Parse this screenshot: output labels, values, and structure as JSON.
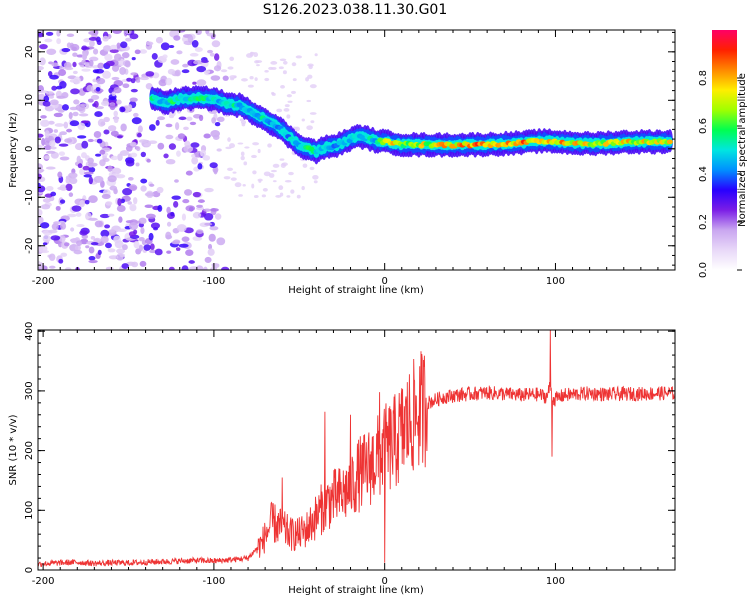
{
  "title": "S126.2023.038.11.30.G01",
  "chart_data": [
    {
      "type": "heatmap",
      "xlabel": "Height of straight line (km)",
      "ylabel": "Frequency (Hz)",
      "xlim": [
        -203,
        170
      ],
      "ylim": [
        -25,
        24.5
      ],
      "xticks": [
        -200,
        -100,
        0,
        100
      ],
      "yticks": [
        -20,
        -10,
        0,
        10,
        20
      ],
      "colorbar": {
        "label": "Normalized spectral amplitude",
        "range": [
          0,
          1
        ],
        "ticks": [
          0.0,
          0.2,
          0.4,
          0.6,
          0.8
        ],
        "tick_labels": [
          "0.0",
          "0.2",
          "0.4",
          "0.6",
          "0.8"
        ],
        "colormap": [
          "#ffffff",
          "#e8d8f8",
          "#c9a6f0",
          "#7b1ee6",
          "#2800ff",
          "#0090ff",
          "#00e6e0",
          "#00ff50",
          "#a0ff00",
          "#ffee00",
          "#ff8800",
          "#ff2000",
          "#ff0066"
        ]
      },
      "ridge": {
        "x": [
          -136,
          -128,
          -120,
          -110,
          -100,
          -92,
          -85,
          -78,
          -72,
          -65,
          -60,
          -55,
          -50,
          -45,
          -40,
          -35,
          -30,
          -25,
          -20,
          -15,
          -10,
          -5,
          0,
          10,
          20,
          40,
          60,
          80,
          90,
          100,
          120,
          140,
          168
        ],
        "y": [
          10.5,
          9.5,
          10.3,
          10.5,
          10.3,
          9.2,
          9.0,
          7.6,
          6.5,
          5.0,
          3.8,
          2.2,
          0.8,
          0.0,
          -0.6,
          0.3,
          0.5,
          1.2,
          2.0,
          2.6,
          2.2,
          1.6,
          1.5,
          0.9,
          0.8,
          0.8,
          0.9,
          1.2,
          1.6,
          1.5,
          1.0,
          1.4,
          1.5
        ],
        "amplitude": [
          0.55,
          0.55,
          0.6,
          0.6,
          0.55,
          0.55,
          0.55,
          0.55,
          0.55,
          0.5,
          0.5,
          0.5,
          0.55,
          0.6,
          0.6,
          0.55,
          0.5,
          0.5,
          0.5,
          0.55,
          0.55,
          0.55,
          0.9,
          0.7,
          0.75,
          0.85,
          0.9,
          0.9,
          0.9,
          0.85,
          0.8,
          0.8,
          0.8
        ]
      }
    },
    {
      "type": "line",
      "xlabel": "Height of straight line (km)",
      "ylabel": "SNR (10 * v/v)",
      "xlim": [
        -203,
        170
      ],
      "ylim": [
        0,
        402
      ],
      "xticks": [
        -200,
        -100,
        0,
        100
      ],
      "yticks": [
        0,
        100,
        200,
        300,
        400
      ],
      "color": "#ee3333",
      "series": [
        {
          "x": [
            -203,
            -190,
            -180,
            -170,
            -160,
            -150,
            -140,
            -130,
            -120,
            -110,
            -100,
            -90,
            -80,
            -72,
            -66,
            -60,
            -55,
            -50,
            -45,
            -40,
            -35,
            -30,
            -25,
            -20,
            -15,
            -10,
            -5,
            0,
            5,
            10,
            15,
            20,
            25,
            30,
            35,
            40,
            50,
            60,
            70,
            80,
            90,
            95,
            97,
            99,
            105,
            110,
            120,
            130,
            140,
            150,
            160,
            170
          ],
          "y": [
            10,
            12,
            13,
            11,
            12,
            12,
            13,
            14,
            15,
            16,
            15,
            17,
            20,
            45,
            80,
            70,
            60,
            60,
            70,
            90,
            110,
            120,
            125,
            140,
            160,
            170,
            185,
            200,
            210,
            230,
            250,
            265,
            280,
            285,
            290,
            292,
            295,
            297,
            295,
            293,
            294,
            290,
            310,
            285,
            293,
            294,
            296,
            294,
            295,
            295,
            296,
            296
          ]
        }
      ],
      "spikes": [
        {
          "x": -60,
          "y": 155
        },
        {
          "x": -35,
          "y": 265
        },
        {
          "x": -20,
          "y": 260
        },
        {
          "x": -3,
          "y": 298
        },
        {
          "x": 0,
          "y": 12
        },
        {
          "x": 97,
          "y": 402
        },
        {
          "x": 98,
          "y": 190
        }
      ]
    }
  ]
}
